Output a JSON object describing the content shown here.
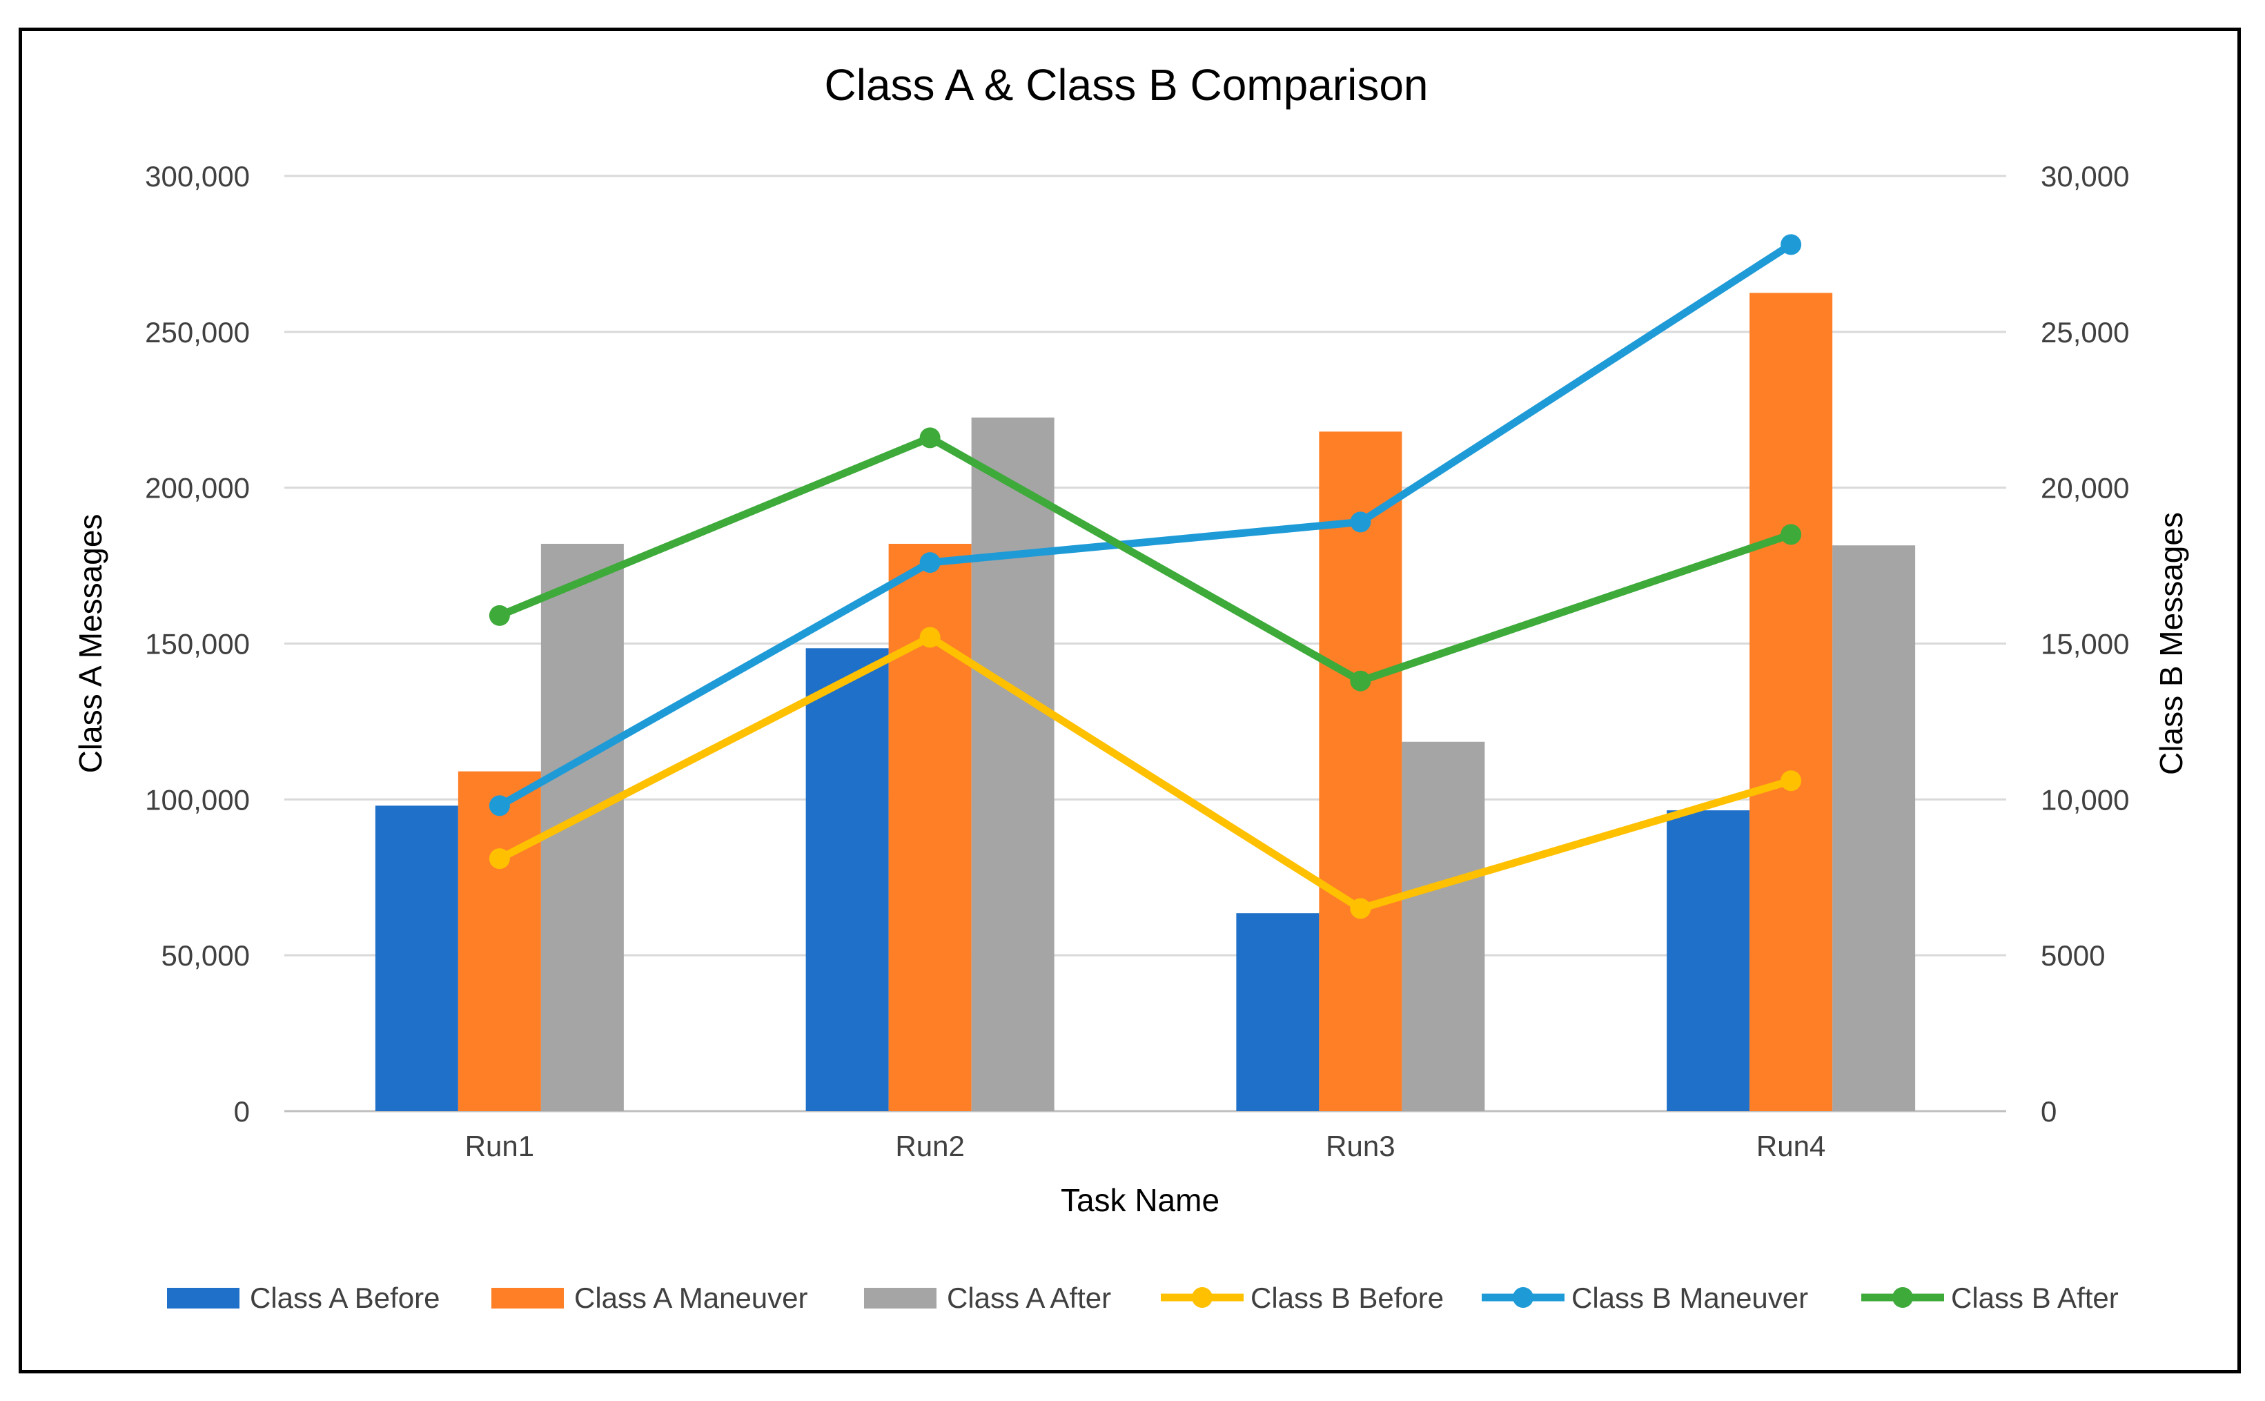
{
  "chart_data": {
    "type": "bar",
    "title": "Class A & Class B Comparison",
    "xlabel": "Task Name",
    "ylabel_left": "Class A Messages",
    "ylabel_right": "Class B Messages",
    "categories": [
      "Run1",
      "Run2",
      "Run3",
      "Run4"
    ],
    "left_axis": {
      "min": 0,
      "max": 300000,
      "ticks": [
        0,
        50000,
        100000,
        150000,
        200000,
        250000,
        300000
      ],
      "tick_labels": [
        "0",
        "50,000",
        "100,000",
        "150,000",
        "200,000",
        "250,000",
        "300,000"
      ]
    },
    "right_axis": {
      "min": 0,
      "max": 30000,
      "ticks": [
        0,
        5000,
        10000,
        15000,
        20000,
        25000,
        30000
      ],
      "tick_labels": [
        "0",
        "5000",
        "10,000",
        "15,000",
        "20,000",
        "25,000",
        "30,000"
      ]
    },
    "grid": true,
    "legend_position": "bottom",
    "bar_series": [
      {
        "name": "Class A Before",
        "color": "#1F70C8",
        "values": [
          98000,
          148500,
          63500,
          96500
        ]
      },
      {
        "name": "Class A Maneuver",
        "color": "#FF7F27",
        "values": [
          109000,
          182000,
          218000,
          262500
        ]
      },
      {
        "name": "Class A After",
        "color": "#A5A5A5",
        "values": [
          182000,
          222500,
          118500,
          181500
        ]
      }
    ],
    "line_series": [
      {
        "name": "Class B Before",
        "color": "#FFC000",
        "values": [
          8100,
          15200,
          6500,
          10600
        ]
      },
      {
        "name": "Class B Maneuver",
        "color": "#1E9BD7",
        "values": [
          9800,
          17600,
          18900,
          27800
        ]
      },
      {
        "name": "Class B After",
        "color": "#3DAA3A",
        "values": [
          15900,
          21600,
          13800,
          18500
        ]
      }
    ]
  }
}
